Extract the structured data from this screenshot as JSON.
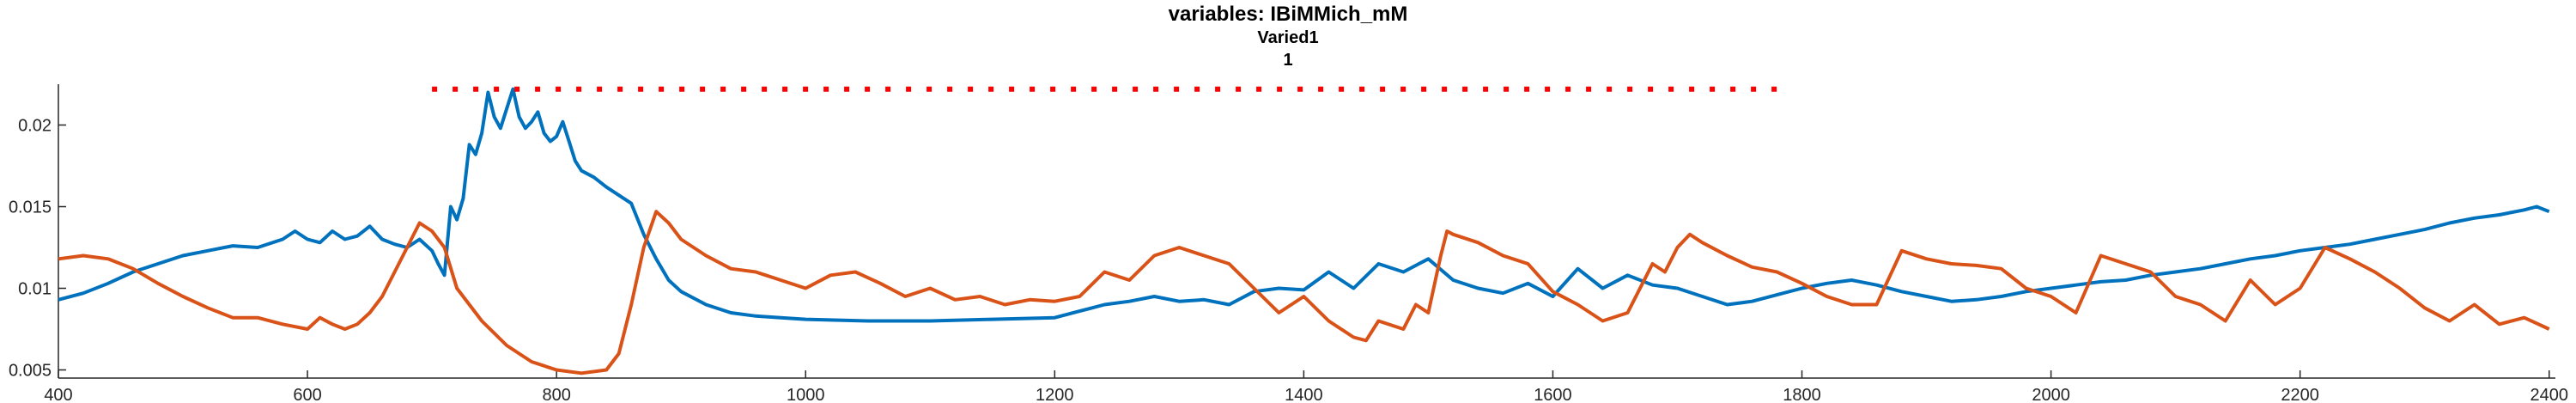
{
  "chart_data": {
    "type": "line",
    "title": "variables: IBiMMich_mM",
    "subtitle": "Varied1",
    "subtitle2": "1",
    "xlabel": "",
    "ylabel": "",
    "xlim": [
      400,
      2405
    ],
    "ylim": [
      0.0045,
      0.0225
    ],
    "grid": false,
    "legend": "none",
    "x_ticks": [
      {
        "value": 400,
        "label": "400"
      },
      {
        "value": 600,
        "label": "600"
      },
      {
        "value": 800,
        "label": "800"
      },
      {
        "value": 1000,
        "label": "1000"
      },
      {
        "value": 1200,
        "label": "1200"
      },
      {
        "value": 1400,
        "label": "1400"
      },
      {
        "value": 1600,
        "label": "1600"
      },
      {
        "value": 1800,
        "label": "1800"
      },
      {
        "value": 2000,
        "label": "2000"
      },
      {
        "value": 2200,
        "label": "2200"
      },
      {
        "value": 2400,
        "label": "2400"
      }
    ],
    "y_ticks": [
      {
        "value": 0.005,
        "label": "0.005"
      },
      {
        "value": 0.01,
        "label": "0.01"
      },
      {
        "value": 0.015,
        "label": "0.015"
      },
      {
        "value": 0.02,
        "label": "0.02"
      }
    ],
    "series": [
      {
        "color": "#0072BD",
        "x": [
          400,
          420,
          440,
          460,
          480,
          500,
          520,
          540,
          560,
          580,
          590,
          600,
          610,
          620,
          630,
          640,
          650,
          660,
          670,
          680,
          690,
          700,
          705,
          710,
          715,
          720,
          725,
          730,
          735,
          740,
          745,
          750,
          755,
          760,
          765,
          770,
          775,
          780,
          785,
          790,
          795,
          800,
          805,
          810,
          815,
          820,
          830,
          840,
          850,
          860,
          870,
          880,
          890,
          900,
          920,
          940,
          960,
          980,
          1000,
          1050,
          1100,
          1150,
          1200,
          1220,
          1240,
          1260,
          1280,
          1300,
          1320,
          1340,
          1360,
          1380,
          1400,
          1420,
          1440,
          1460,
          1480,
          1500,
          1520,
          1540,
          1560,
          1580,
          1600,
          1620,
          1640,
          1660,
          1680,
          1700,
          1720,
          1740,
          1760,
          1780,
          1800,
          1820,
          1840,
          1860,
          1880,
          1900,
          1920,
          1940,
          1960,
          1980,
          2000,
          2020,
          2040,
          2060,
          2080,
          2100,
          2120,
          2140,
          2160,
          2180,
          2200,
          2220,
          2240,
          2260,
          2280,
          2300,
          2320,
          2340,
          2360,
          2380,
          2390,
          2400
        ],
        "y": [
          0.0093,
          0.0097,
          0.0103,
          0.011,
          0.0115,
          0.012,
          0.0123,
          0.0126,
          0.0125,
          0.013,
          0.0135,
          0.013,
          0.0128,
          0.0135,
          0.013,
          0.0132,
          0.0138,
          0.013,
          0.0127,
          0.0125,
          0.013,
          0.0123,
          0.0115,
          0.0108,
          0.015,
          0.0142,
          0.0155,
          0.0188,
          0.0182,
          0.0195,
          0.022,
          0.0205,
          0.0198,
          0.021,
          0.0222,
          0.0205,
          0.0198,
          0.0202,
          0.0208,
          0.0195,
          0.019,
          0.0193,
          0.0202,
          0.019,
          0.0178,
          0.0172,
          0.0168,
          0.0162,
          0.0157,
          0.0152,
          0.0133,
          0.0118,
          0.0105,
          0.0098,
          0.009,
          0.0085,
          0.0083,
          0.0082,
          0.0081,
          0.008,
          0.008,
          0.0081,
          0.0082,
          0.0086,
          0.009,
          0.0092,
          0.0095,
          0.0092,
          0.0093,
          0.009,
          0.0098,
          0.01,
          0.0099,
          0.011,
          0.01,
          0.0115,
          0.011,
          0.0118,
          0.0105,
          0.01,
          0.0097,
          0.0103,
          0.0095,
          0.0112,
          0.01,
          0.0108,
          0.0102,
          0.01,
          0.0095,
          0.009,
          0.0092,
          0.0096,
          0.01,
          0.0103,
          0.0105,
          0.0102,
          0.0098,
          0.0095,
          0.0092,
          0.0093,
          0.0095,
          0.0098,
          0.01,
          0.0102,
          0.0104,
          0.0105,
          0.0108,
          0.011,
          0.0112,
          0.0115,
          0.0118,
          0.012,
          0.0123,
          0.0125,
          0.0127,
          0.013,
          0.0133,
          0.0136,
          0.014,
          0.0143,
          0.0145,
          0.0148,
          0.015,
          0.0147
        ]
      },
      {
        "color": "#D95319",
        "x": [
          400,
          420,
          440,
          460,
          480,
          500,
          520,
          540,
          560,
          580,
          600,
          610,
          620,
          630,
          640,
          650,
          660,
          670,
          680,
          690,
          700,
          710,
          720,
          740,
          760,
          780,
          800,
          820,
          840,
          850,
          860,
          870,
          880,
          890,
          900,
          920,
          940,
          960,
          980,
          1000,
          1020,
          1040,
          1060,
          1080,
          1100,
          1120,
          1140,
          1160,
          1180,
          1200,
          1220,
          1240,
          1260,
          1280,
          1300,
          1320,
          1340,
          1360,
          1380,
          1400,
          1420,
          1440,
          1450,
          1460,
          1480,
          1490,
          1500,
          1510,
          1515,
          1520,
          1540,
          1560,
          1580,
          1600,
          1620,
          1640,
          1660,
          1680,
          1690,
          1700,
          1710,
          1720,
          1740,
          1760,
          1780,
          1800,
          1820,
          1840,
          1860,
          1880,
          1900,
          1920,
          1940,
          1960,
          1980,
          2000,
          2020,
          2040,
          2060,
          2080,
          2100,
          2120,
          2140,
          2160,
          2180,
          2200,
          2220,
          2240,
          2260,
          2280,
          2300,
          2320,
          2340,
          2360,
          2380,
          2400
        ],
        "y": [
          0.0118,
          0.012,
          0.0118,
          0.0112,
          0.0103,
          0.0095,
          0.0088,
          0.0082,
          0.0082,
          0.0078,
          0.0075,
          0.0082,
          0.0078,
          0.0075,
          0.0078,
          0.0085,
          0.0095,
          0.011,
          0.0125,
          0.014,
          0.0135,
          0.0125,
          0.01,
          0.008,
          0.0065,
          0.0055,
          0.005,
          0.0048,
          0.005,
          0.006,
          0.009,
          0.0125,
          0.0147,
          0.014,
          0.013,
          0.012,
          0.0112,
          0.011,
          0.0105,
          0.01,
          0.0108,
          0.011,
          0.0103,
          0.0095,
          0.01,
          0.0093,
          0.0095,
          0.009,
          0.0093,
          0.0092,
          0.0095,
          0.011,
          0.0105,
          0.012,
          0.0125,
          0.012,
          0.0115,
          0.01,
          0.0085,
          0.0095,
          0.008,
          0.007,
          0.0068,
          0.008,
          0.0075,
          0.009,
          0.0085,
          0.012,
          0.0135,
          0.0133,
          0.0128,
          0.012,
          0.0115,
          0.0098,
          0.009,
          0.008,
          0.0085,
          0.0115,
          0.011,
          0.0125,
          0.0133,
          0.0128,
          0.012,
          0.0113,
          0.011,
          0.0103,
          0.0095,
          0.009,
          0.009,
          0.0123,
          0.0118,
          0.0115,
          0.0114,
          0.0112,
          0.01,
          0.0095,
          0.0085,
          0.012,
          0.0115,
          0.011,
          0.0095,
          0.009,
          0.008,
          0.0105,
          0.009,
          0.01,
          0.0125,
          0.0118,
          0.011,
          0.01,
          0.0088,
          0.008,
          0.009,
          0.0078,
          0.0082,
          0.0075
        ]
      },
      {
        "color": "#FF0000",
        "style": "dotted",
        "x": [
          700,
          1780
        ],
        "y": [
          0.0222,
          0.0222
        ]
      }
    ]
  }
}
